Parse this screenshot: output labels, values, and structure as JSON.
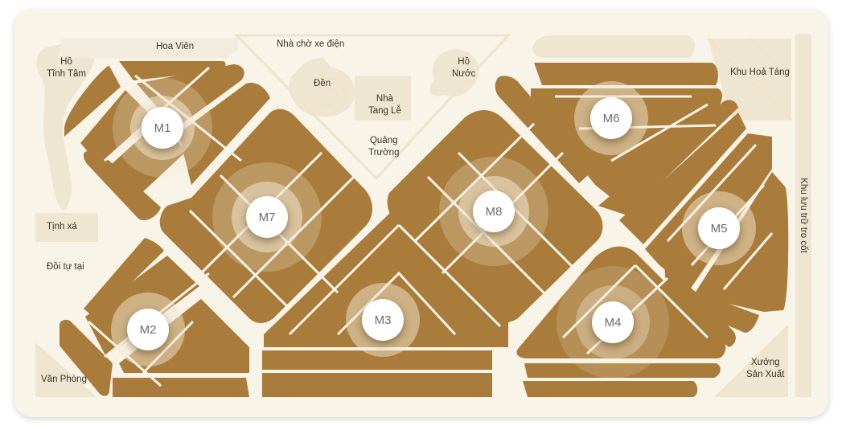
{
  "map": {
    "labels": {
      "ho_tinh_tam": [
        "Hồ",
        "Tĩnh Tâm"
      ],
      "hoa_vien": "Hoa Viên",
      "nha_cho_xe_dien": "Nhà chờ xe điện",
      "den": "Đền",
      "nha_tang_le": [
        "Nhà",
        "Tang Lễ"
      ],
      "ho_nuoc": [
        "Hồ",
        "Nước"
      ],
      "khu_hoa_tang": "Khu Hoả Táng",
      "quang_truong": [
        "Quảng",
        "Trường"
      ],
      "tinh_xa": "Tịnh xá",
      "doi_tu_tai": "Đồi tự tại",
      "van_phong": "Văn Phòng",
      "xuong_san_xuat": [
        "Xưởng",
        "Sản Xuất"
      ],
      "khu_luu_tru": "Khu lưu trữ tro cốt"
    },
    "markers": {
      "m1": "M1",
      "m2": "M2",
      "m3": "M3",
      "m4": "M4",
      "m5": "M5",
      "m6": "M6",
      "m7": "M7",
      "m8": "M8"
    },
    "colors": {
      "background": "#f8f4e8",
      "plot": "#a97c3b",
      "facility": "#efe6d2",
      "marker_halo": "#f3e8d2"
    }
  }
}
